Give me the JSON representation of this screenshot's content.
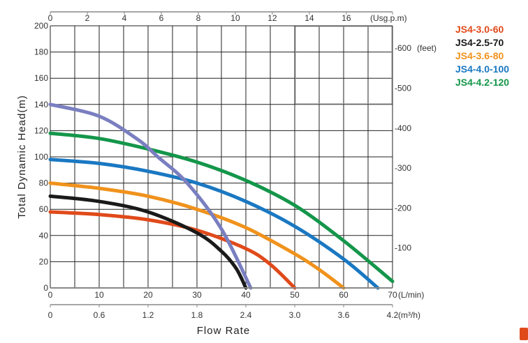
{
  "chart_data": {
    "type": "line",
    "xlabel": "Flow Rate",
    "ylabel": "Total Dynamic Head(m)",
    "xlim": [
      0,
      70
    ],
    "ylim": [
      0,
      200
    ],
    "grid": true,
    "legend_placement": "top-right",
    "x_ticks": [
      "0",
      "10",
      "20",
      "30",
      "40",
      "50",
      "60",
      "70"
    ],
    "x_unit": "(L/min)",
    "y_ticks": [
      "0",
      "20",
      "40",
      "60",
      "80",
      "100",
      "120",
      "140",
      "160",
      "180",
      "200"
    ],
    "top_axis": {
      "unit": "(Usg.p.m)",
      "ticks": [
        "0",
        "2",
        "4",
        "6",
        "8",
        "10",
        "12",
        "14",
        "16"
      ],
      "values": [
        0,
        2,
        4,
        6,
        8,
        10,
        12,
        14,
        16
      ]
    },
    "bottom_axis2": {
      "unit": "(m³/h)",
      "ticks": [
        "0",
        "0.6",
        "1.2",
        "1.8",
        "2.4",
        "3.0",
        "3.6",
        "4.2"
      ],
      "values": [
        0,
        0.6,
        1.2,
        1.8,
        2.4,
        3.0,
        3.6,
        4.2
      ]
    },
    "right_axis": {
      "unit": "(feet)",
      "ticks": [
        "-100",
        "-200",
        "-300",
        "-400",
        "-500",
        "-600"
      ],
      "values": [
        100,
        200,
        300,
        400,
        500,
        600
      ]
    },
    "series": [
      {
        "name": "JS4-3.0-60",
        "color": "#e04a1a",
        "x": [
          0,
          10,
          20,
          30,
          40,
          45,
          50
        ],
        "y": [
          58,
          56,
          52,
          44,
          30,
          18,
          0
        ]
      },
      {
        "name": "JS4-2.5-70",
        "color": "#1a1a1a",
        "x": [
          0,
          10,
          20,
          30,
          35,
          38,
          40
        ],
        "y": [
          70,
          66,
          58,
          42,
          28,
          15,
          0
        ]
      },
      {
        "name": "JS4-3.6-80",
        "color": "#f0921c",
        "x": [
          0,
          10,
          20,
          30,
          40,
          50,
          55,
          60
        ],
        "y": [
          80,
          76,
          70,
          60,
          46,
          26,
          14,
          0
        ]
      },
      {
        "name": "JS4-4.0-100",
        "color": "#1a78c2",
        "x": [
          0,
          10,
          20,
          30,
          40,
          50,
          60,
          67
        ],
        "y": [
          98,
          95,
          89,
          80,
          66,
          47,
          22,
          0
        ]
      },
      {
        "name": "JS4-4.2-120",
        "color": "#14964a",
        "x": [
          0,
          10,
          20,
          30,
          40,
          50,
          60,
          70
        ],
        "y": [
          118,
          114,
          106,
          96,
          82,
          63,
          36,
          5
        ]
      },
      {
        "name": "",
        "color": "#7a7fc0",
        "x": [
          0,
          10,
          18,
          22,
          28,
          35,
          41
        ],
        "y": [
          140,
          131,
          113,
          100,
          80,
          45,
          0
        ]
      }
    ]
  }
}
